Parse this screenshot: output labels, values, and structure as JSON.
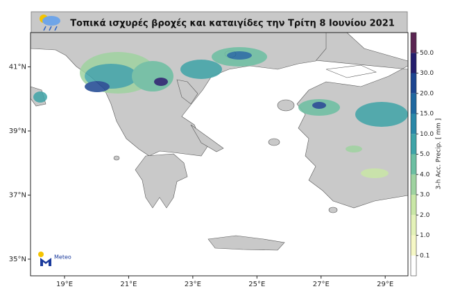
{
  "title": "Τοπικά ισχυρές βροχές και καταιγίδες την Τρίτη 8 Ιουνίου 2021",
  "map": {
    "xlim": [
      17.94,
      29.71
    ],
    "ylim": [
      34.48,
      42.07
    ],
    "xticks": [
      {
        "value": 19,
        "label": "19°E"
      },
      {
        "value": 21,
        "label": "21°E"
      },
      {
        "value": 23,
        "label": "23°E"
      },
      {
        "value": 25,
        "label": "25°E"
      },
      {
        "value": 27,
        "label": "27°E"
      },
      {
        "value": 29,
        "label": "29°E"
      }
    ],
    "yticks": [
      {
        "value": 35,
        "label": "35°N"
      },
      {
        "value": 37,
        "label": "37°N"
      },
      {
        "value": 39,
        "label": "39°N"
      },
      {
        "value": 41,
        "label": "41°N"
      }
    ]
  },
  "colorbar": {
    "label": "3-h Acc. Precip. [ mm ]",
    "ticks": [
      0.1,
      {
        "value": 1,
        "label": "1.0"
      },
      {
        "value": 2,
        "label": "2.0"
      },
      {
        "value": 3,
        "label": "3.0"
      },
      {
        "value": 4,
        "label": "4.0"
      },
      {
        "value": 5,
        "label": "5.0"
      },
      {
        "value": 10,
        "label": "10.0"
      },
      {
        "value": 15,
        "label": "15.0"
      },
      {
        "value": 20,
        "label": "20.0"
      },
      {
        "value": 30,
        "label": "30.0"
      },
      {
        "value": 50,
        "label": "50.0"
      }
    ],
    "colors": [
      "#ffffff",
      "#f6f8c6",
      "#e4f2b8",
      "#c9e7a6",
      "#9fd3a0",
      "#6cbfa2",
      "#3fa4a8",
      "#2a88a8",
      "#1f68a0",
      "#1c4590",
      "#231d6c",
      "#5a2452"
    ]
  },
  "logo": {
    "text": "Meteo"
  }
}
